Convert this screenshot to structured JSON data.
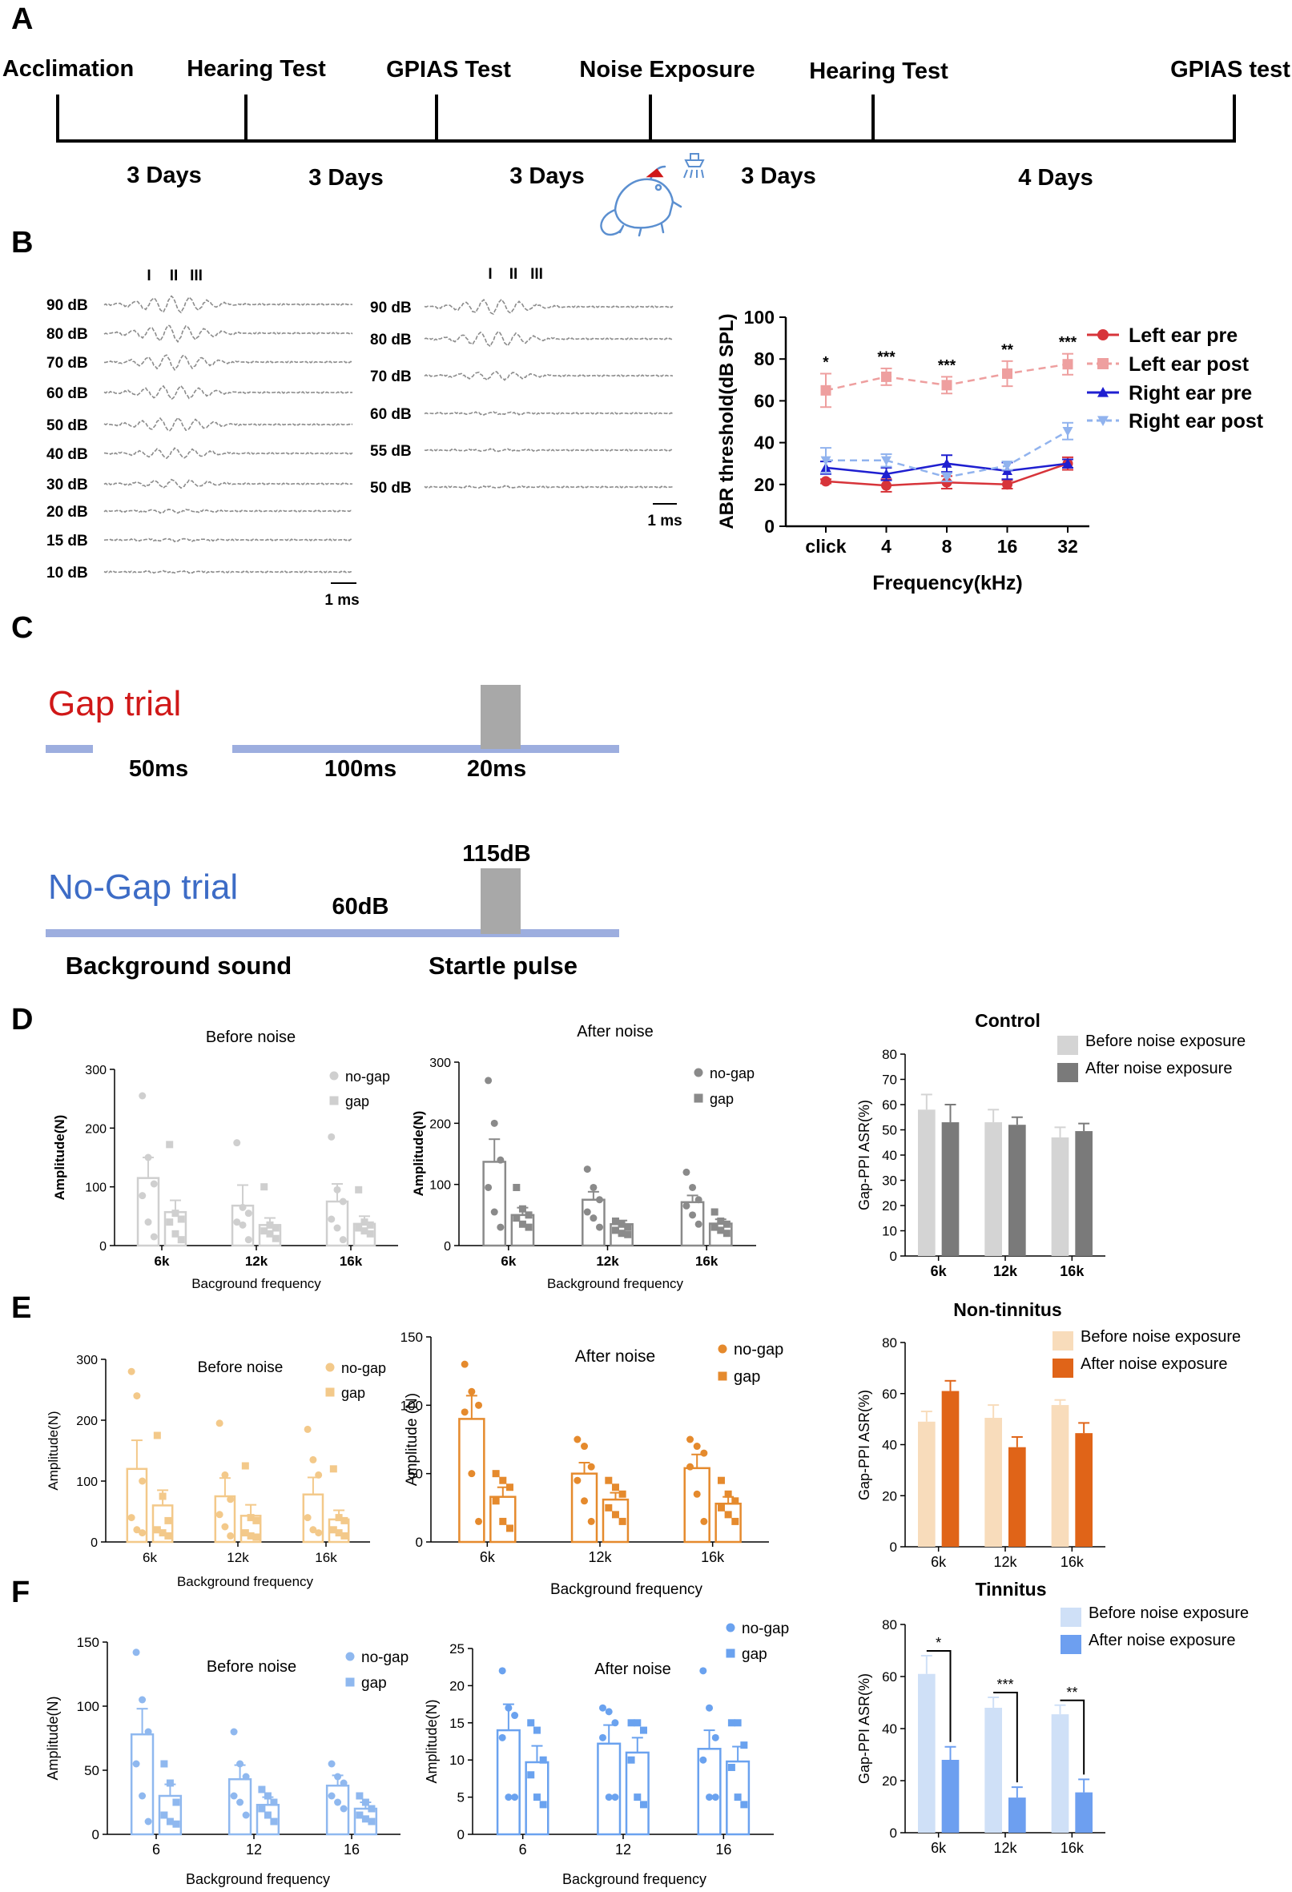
{
  "panels": {
    "a": "A",
    "b": "B",
    "c": "C",
    "d": "D",
    "e": "E",
    "f": "F"
  },
  "timeline": {
    "events": [
      "Acclimation",
      "Hearing Test",
      "GPIAS Test",
      "Noise Exposure",
      "Hearing Test",
      "GPIAS test"
    ],
    "durations": [
      "3 Days",
      "3 Days",
      "3 Days",
      "3 Days",
      "4 Days"
    ]
  },
  "abr_waves": {
    "peaks": [
      "I",
      "II",
      "III"
    ],
    "pre_levels": [
      "90 dB",
      "80 dB",
      "70 dB",
      "60 dB",
      "50 dB",
      "40 dB",
      "30 dB",
      "20 dB",
      "15 dB",
      "10 dB"
    ],
    "post_levels": [
      "90 dB",
      "80 dB",
      "70 dB",
      "60 dB",
      "55 dB",
      "50 dB"
    ],
    "scale": "1 ms"
  },
  "abr_chart": {
    "chart_data": {
      "type": "line",
      "categories": [
        "click",
        "4",
        "8",
        "16",
        "32"
      ],
      "ylabel": "ABR threshold(dB SPL)",
      "xlabel": "Frequency(kHz)",
      "ylim": [
        0,
        100
      ],
      "yticks": [
        "0",
        "20",
        "40",
        "60",
        "80",
        "100"
      ],
      "significance": [
        "*",
        "***",
        "***",
        "**",
        "***"
      ],
      "legend_position": "right",
      "series": [
        {
          "name": "Left ear pre",
          "values": [
            21.5,
            19.5,
            21,
            20,
            30
          ],
          "err": [
            1,
            3,
            3,
            2,
            3
          ],
          "color": "#d7343a",
          "style": "solid",
          "marker": "circle"
        },
        {
          "name": "Left ear post",
          "values": [
            65,
            71.5,
            67.5,
            73,
            77.5
          ],
          "err": [
            8,
            4,
            4,
            6,
            5
          ],
          "color": "#ee9f9f",
          "style": "dashed",
          "marker": "square"
        },
        {
          "name": "Right ear pre",
          "values": [
            28,
            25,
            30,
            26.5,
            30
          ],
          "err": [
            3,
            3,
            4,
            4,
            2
          ],
          "color": "#1f1fd0",
          "style": "solid",
          "marker": "triangle"
        },
        {
          "name": "Right ear post",
          "values": [
            31.5,
            31.5,
            23.5,
            29,
            45.5
          ],
          "err": [
            6,
            3,
            2,
            2,
            4
          ],
          "color": "#91b3ee",
          "style": "dashed",
          "marker": "triangle-down"
        }
      ]
    }
  },
  "trials": {
    "gap_title": "Gap trial",
    "nogap_title": "No-Gap trial",
    "gap_labels": [
      "50ms",
      "100ms",
      "20ms"
    ],
    "nogap_labels": {
      "db60": "60dB",
      "db115": "115dB",
      "background": "Background sound",
      "startle": "Startle pulse"
    }
  },
  "charts": [
    {
      "id": "d1",
      "title": "Before noise",
      "xlabel": "Bacground frequency",
      "ylabel": "Amplitude(N)",
      "ylim": [
        0,
        300
      ],
      "yticks": [
        "0",
        "100",
        "200",
        "300"
      ],
      "categories": [
        "6k",
        "12k",
        "16k"
      ],
      "chart_data": {
        "type": "bar",
        "series": [
          {
            "name": "no-gap",
            "values": [
              115,
              68,
              75
            ],
            "err": [
              35,
              35,
              30
            ],
            "points": [
              [
                255,
                150,
                105,
                85,
                40,
                15
              ],
              [
                175,
                65,
                55,
                40,
                35,
                10
              ],
              [
                185,
                95,
                75,
                45,
                30,
                10
              ]
            ]
          },
          {
            "name": "gap",
            "values": [
              57,
              35,
              37
            ],
            "err": [
              20,
              12,
              13
            ],
            "points": [
              [
                172,
                55,
                45,
                40,
                20,
                10
              ],
              [
                100,
                35,
                30,
                25,
                20,
                12
              ],
              [
                95,
                40,
                35,
                30,
                25,
                20
              ]
            ]
          }
        ]
      },
      "color1": "#cfcfcf",
      "color2": "#cfcfcf",
      "marker1": "circle",
      "marker2": "square"
    },
    {
      "id": "d2",
      "title": "After noise",
      "xlabel": "Background frequency",
      "ylabel": "Amplitude(N)",
      "ylim": [
        0,
        300
      ],
      "yticks": [
        "0",
        "100",
        "200",
        "300"
      ],
      "categories": [
        "6k",
        "12k",
        "16k"
      ],
      "chart_data": {
        "type": "bar",
        "series": [
          {
            "name": "no-gap",
            "values": [
              137,
              75,
              71
            ],
            "err": [
              37,
              13,
              11
            ],
            "points": [
              [
                270,
                200,
                140,
                95,
                55,
                30
              ],
              [
                125,
                95,
                75,
                55,
                45,
                30
              ],
              [
                120,
                95,
                75,
                65,
                50,
                35
              ]
            ]
          },
          {
            "name": "gap",
            "values": [
              50,
              35,
              36
            ],
            "err": [
              12,
              6,
              7
            ],
            "points": [
              [
                95,
                60,
                50,
                45,
                35,
                30
              ],
              [
                40,
                35,
                30,
                25,
                20,
                18
              ],
              [
                55,
                40,
                35,
                30,
                25,
                20
              ]
            ]
          }
        ]
      },
      "color1": "#8a8a8a",
      "color2": "#8a8a8a",
      "marker1": "circle",
      "marker2": "square"
    },
    {
      "id": "d3",
      "title": "Control",
      "xlabel": "",
      "ylabel": "Gap-PPI ASR(%)",
      "ylim": [
        0,
        80
      ],
      "yticks": [
        "0",
        "10",
        "20",
        "30",
        "40",
        "50",
        "60",
        "70",
        "80"
      ],
      "categories": [
        "6k",
        "12k",
        "16k"
      ],
      "chart_data": {
        "type": "bar",
        "series": [
          {
            "name": "Before noise exposure",
            "values": [
              58,
              53,
              47
            ],
            "err": [
              6,
              5,
              4
            ]
          },
          {
            "name": "After noise exposure",
            "values": [
              53,
              52,
              49.5
            ],
            "err": [
              7,
              3,
              3
            ]
          }
        ]
      },
      "color1": "#d4d4d4",
      "color2": "#7a7a7a"
    },
    {
      "id": "e1",
      "title": "Before noise",
      "xlabel": "Background frequency",
      "ylabel": "Amplitude(N)",
      "ylim": [
        0,
        300
      ],
      "yticks": [
        "0",
        "100",
        "200",
        "300"
      ],
      "categories": [
        "6k",
        "12k",
        "16k"
      ],
      "chart_data": {
        "type": "bar",
        "series": [
          {
            "name": "no-gap",
            "values": [
              120,
              75,
              78
            ],
            "err": [
              47,
              30,
              28
            ],
            "points": [
              [
                280,
                240,
                100,
                40,
                20,
                15
              ],
              [
                195,
                110,
                70,
                45,
                25,
                10
              ],
              [
                185,
                135,
                110,
                40,
                20,
                15
              ]
            ]
          },
          {
            "name": "gap",
            "values": [
              60,
              43,
              37
            ],
            "err": [
              25,
              18,
              15
            ],
            "points": [
              [
                175,
                75,
                35,
                20,
                15,
                10
              ],
              [
                125,
                40,
                35,
                15,
                10,
                8
              ],
              [
                120,
                40,
                35,
                20,
                15,
                10
              ]
            ]
          }
        ]
      },
      "color1": "#f3c98a",
      "color2": "#f3c98a",
      "marker1": "circle",
      "marker2": "square"
    },
    {
      "id": "e2",
      "title": "After noise",
      "xlabel": "Background frequency",
      "ylabel": "Amplitude (N)",
      "ylim": [
        0,
        150
      ],
      "yticks": [
        "0",
        "50",
        "100",
        "150"
      ],
      "categories": [
        "6k",
        "12k",
        "16k"
      ],
      "chart_data": {
        "type": "bar",
        "series": [
          {
            "name": "no-gap",
            "values": [
              90,
              50,
              54
            ],
            "err": [
              17,
              8,
              10
            ],
            "points": [
              [
                130,
                110,
                100,
                95,
                50,
                15
              ],
              [
                75,
                70,
                55,
                45,
                30,
                15
              ],
              [
                75,
                70,
                65,
                55,
                35,
                15
              ]
            ]
          },
          {
            "name": "gap",
            "values": [
              33,
              31,
              28
            ],
            "err": [
              7,
              5,
              5
            ],
            "points": [
              [
                50,
                45,
                40,
                30,
                15,
                10
              ],
              [
                45,
                40,
                35,
                25,
                20,
                15
              ],
              [
                45,
                35,
                30,
                25,
                20,
                15
              ]
            ]
          }
        ]
      },
      "color1": "#e58a2d",
      "color2": "#e58a2d",
      "marker1": "circle",
      "marker2": "square"
    },
    {
      "id": "e3",
      "title": "Non-tinnitus",
      "xlabel": "",
      "ylabel": "Gap-PPI ASR(%)",
      "ylim": [
        0,
        80
      ],
      "yticks": [
        "0",
        "20",
        "40",
        "60",
        "80"
      ],
      "categories": [
        "6k",
        "12k",
        "16k"
      ],
      "chart_data": {
        "type": "bar",
        "series": [
          {
            "name": "Before noise exposure",
            "values": [
              49,
              50.5,
              55.5
            ],
            "err": [
              4,
              5,
              2
            ]
          },
          {
            "name": "After noise exposure",
            "values": [
              61,
              39,
              44.5
            ],
            "err": [
              4,
              4,
              4
            ]
          }
        ]
      },
      "color1": "#f8dcbb",
      "color2": "#e06418"
    },
    {
      "id": "f1",
      "title": "Before noise",
      "xlabel": "Background frequency",
      "ylabel": "Amplitude(N)",
      "ylim": [
        0,
        150
      ],
      "yticks": [
        "0",
        "50",
        "100",
        "150"
      ],
      "categories": [
        "6",
        "12",
        "16"
      ],
      "chart_data": {
        "type": "bar",
        "series": [
          {
            "name": "no-gap",
            "values": [
              78,
              43,
              38
            ],
            "err": [
              20,
              11,
              8
            ],
            "points": [
              [
                142,
                105,
                80,
                55,
                30,
                10
              ],
              [
                80,
                55,
                45,
                30,
                25,
                15
              ],
              [
                55,
                45,
                40,
                30,
                25,
                20
              ]
            ]
          },
          {
            "name": "gap",
            "values": [
              30,
              23,
              20
            ],
            "err": [
              9,
              6,
              5
            ],
            "points": [
              [
                55,
                40,
                25,
                15,
                10,
                8
              ],
              [
                35,
                30,
                25,
                20,
                15,
                10
              ],
              [
                30,
                25,
                20,
                15,
                12,
                10
              ]
            ]
          }
        ]
      },
      "color1": "#8fb8ef",
      "color2": "#8fb8ef",
      "marker1": "circle",
      "marker2": "square"
    },
    {
      "id": "f2",
      "title": "After noise",
      "xlabel": "Background frequency",
      "ylabel": "Amplitude(N)",
      "ylim": [
        0,
        25
      ],
      "yticks": [
        "0",
        "5",
        "10",
        "15",
        "20",
        "25"
      ],
      "categories": [
        "6",
        "12",
        "16"
      ],
      "chart_data": {
        "type": "bar",
        "series": [
          {
            "name": "no-gap",
            "values": [
              14,
              12.2,
              11.5
            ],
            "err": [
              3.5,
              2.5,
              2.5
            ],
            "points": [
              [
                22,
                17,
                16,
                13,
                5,
                5
              ],
              [
                17,
                16.5,
                15,
                13,
                5,
                5
              ],
              [
                22,
                17,
                13,
                10,
                5,
                5
              ]
            ]
          },
          {
            "name": "gap",
            "values": [
              9.7,
              11,
              9.8
            ],
            "err": [
              2.2,
              2,
              2
            ],
            "points": [
              [
                15,
                14,
                10,
                8,
                5,
                4
              ],
              [
                15,
                15,
                14,
                10,
                5,
                4
              ],
              [
                15,
                15,
                12,
                9,
                5,
                4
              ]
            ]
          }
        ]
      },
      "color1": "#6aa2ef",
      "color2": "#6aa2ef",
      "marker1": "circle",
      "marker2": "square"
    },
    {
      "id": "f3",
      "title": "Tinnitus",
      "xlabel": "",
      "ylabel": "Gap-PPI ASR(%)",
      "ylim": [
        0,
        80
      ],
      "yticks": [
        "0",
        "20",
        "40",
        "60",
        "80"
      ],
      "categories": [
        "6k",
        "12k",
        "16k"
      ],
      "chart_data": {
        "type": "bar",
        "series": [
          {
            "name": "Before noise exposure",
            "values": [
              61,
              48,
              45.5
            ],
            "err": [
              7,
              4,
              3.5
            ]
          },
          {
            "name": "After noise exposure",
            "values": [
              28,
              13.5,
              15.5
            ],
            "err": [
              5,
              4,
              5
            ]
          }
        ]
      },
      "significance": [
        "*",
        "***",
        "**"
      ],
      "color1": "#cfe0f7",
      "color2": "#6d9ff0"
    }
  ]
}
